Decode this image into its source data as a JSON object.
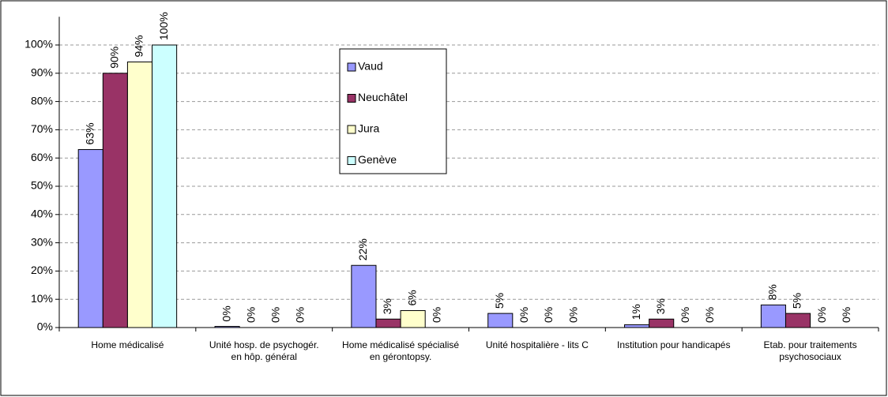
{
  "chart_data": {
    "type": "bar",
    "categories": [
      "Home médicalisé",
      "Unité hosp. de psychogér. en hôp. général",
      "Home médicalisé spécialisé en gérontopsy.",
      "Unité hospitalière - lits C",
      "Institution pour handicapés",
      "Etab. pour traitements psychosociaux"
    ],
    "series": [
      {
        "name": "Vaud",
        "color": "#9999ff",
        "values": [
          63,
          0.4,
          22,
          5,
          1,
          8
        ],
        "value_labels": [
          "63%",
          "0%",
          "22%",
          "5%",
          "1%",
          "8%"
        ]
      },
      {
        "name": "Neuchâtel",
        "color": "#993366",
        "values": [
          90,
          0,
          3,
          0,
          3,
          5
        ],
        "value_labels": [
          "90%",
          "0%",
          "3%",
          "0%",
          "3%",
          "5%"
        ]
      },
      {
        "name": "Jura",
        "color": "#ffffcc",
        "values": [
          94,
          0,
          6,
          0,
          0,
          0
        ],
        "value_labels": [
          "94%",
          "0%",
          "6%",
          "0%",
          "0%",
          "0%"
        ]
      },
      {
        "name": "Genève",
        "color": "#ccffff",
        "values": [
          100,
          0,
          0,
          0,
          0,
          0
        ],
        "value_labels": [
          "100%",
          "0%",
          "0%",
          "0%",
          "0%",
          "0%"
        ]
      }
    ],
    "ylim": [
      0,
      110
    ],
    "yticks": [
      {
        "value": 0,
        "label": "0%"
      },
      {
        "value": 10,
        "label": "10%"
      },
      {
        "value": 20,
        "label": "20%"
      },
      {
        "value": 30,
        "label": "30%"
      },
      {
        "value": 40,
        "label": "40%"
      },
      {
        "value": 50,
        "label": "50%"
      },
      {
        "value": 60,
        "label": "60%"
      },
      {
        "value": 70,
        "label": "70%"
      },
      {
        "value": 80,
        "label": "80%"
      },
      {
        "value": 90,
        "label": "90%"
      },
      {
        "value": 100,
        "label": "100%"
      }
    ],
    "grid": true
  }
}
